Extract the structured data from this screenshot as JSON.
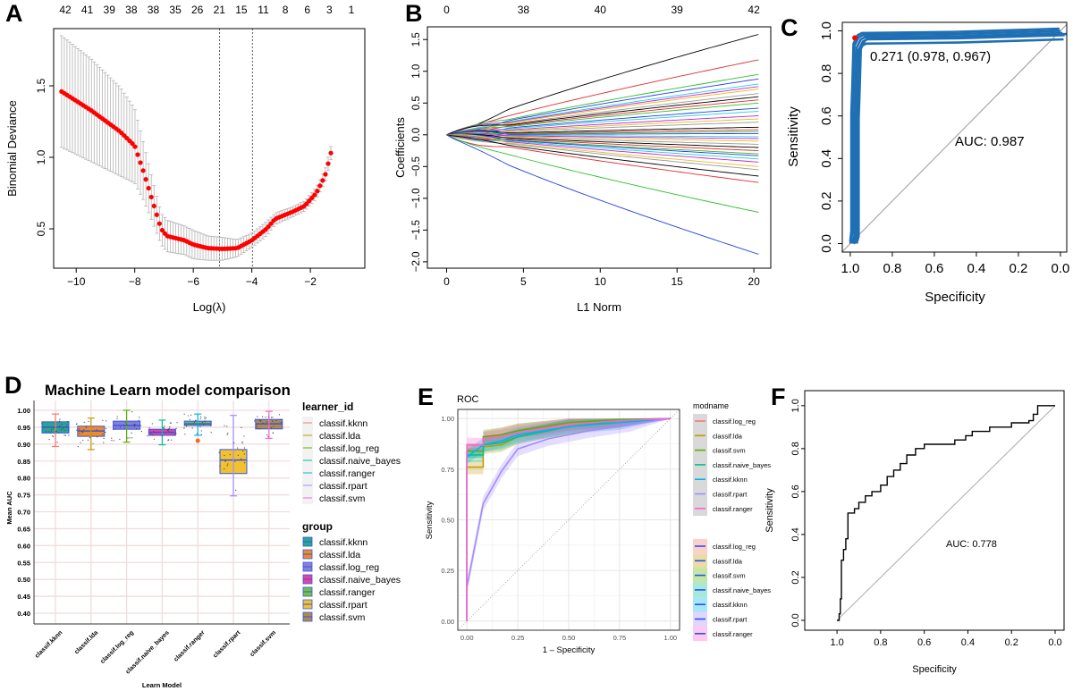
{
  "panel_labels": [
    "A",
    "B",
    "C",
    "D",
    "E",
    "F"
  ],
  "chart_data": [
    {
      "panel": "A",
      "type": "scatter",
      "xlabel": "Log(λ)",
      "ylabel": "Binomial Deviance",
      "xlim": [
        -10.77,
        -0.14
      ],
      "ylim": [
        0.225,
        1.9
      ],
      "x_ticks": [
        -10,
        -8,
        -6,
        -4,
        -2
      ],
      "y_ticks": [
        0.5,
        1.0,
        1.5
      ],
      "top_axis_labels": [
        "42",
        "41",
        "39",
        "38",
        "38",
        "35",
        "26",
        "21",
        "15",
        "11",
        "8",
        "6",
        "3",
        "1"
      ],
      "vlines": [
        -5.1,
        -3.98
      ],
      "point_color": "#ff0000",
      "errorbar_color": "#b3b3b3",
      "curve": [
        [
          -10.5,
          1.46,
          0.39
        ],
        [
          -9.5,
          1.33,
          0.36
        ],
        [
          -8.5,
          1.18,
          0.31
        ],
        [
          -8,
          1.08,
          0.26
        ],
        [
          -7.7,
          0.9,
          0.2
        ],
        [
          -7.4,
          0.7,
          0.15
        ],
        [
          -7.1,
          0.5,
          0.11
        ],
        [
          -6.9,
          0.45,
          0.11
        ],
        [
          -6.3,
          0.42,
          0.1
        ],
        [
          -6,
          0.39,
          0.1
        ],
        [
          -5.5,
          0.365,
          0.085
        ],
        [
          -5,
          0.36,
          0.08
        ],
        [
          -4.5,
          0.365,
          0.06
        ],
        [
          -4,
          0.42,
          0.05
        ],
        [
          -3.5,
          0.5,
          0.05
        ],
        [
          -3.2,
          0.57,
          0.04
        ],
        [
          -2.6,
          0.62,
          0.035
        ],
        [
          -2.2,
          0.66,
          0.035
        ],
        [
          -1.8,
          0.75,
          0.04
        ],
        [
          -1.5,
          0.87,
          0.045
        ],
        [
          -1.3,
          1.03,
          0.045
        ]
      ]
    },
    {
      "panel": "B",
      "type": "line",
      "xlabel": "L1 Norm",
      "ylabel": "Coefficients",
      "xlim": [
        -1.25,
        21.1
      ],
      "ylim": [
        -2.1,
        1.7
      ],
      "x_ticks": [
        0,
        5,
        10,
        15,
        20
      ],
      "y_ticks": [
        -2.0,
        -1.5,
        -1.0,
        -0.5,
        0.0,
        0.5,
        1.0,
        1.5
      ],
      "top_axis_labels": [
        "0",
        "38",
        "40",
        "39",
        "42"
      ],
      "x_max": 20.3,
      "end_values": [
        1.58,
        1.18,
        0.95,
        0.88,
        0.8,
        0.76,
        0.72,
        0.65,
        0.6,
        0.55,
        0.5,
        0.42,
        0.37,
        0.3,
        0.25,
        0.2,
        0.12,
        0.08,
        0.05,
        0.02,
        -0.03,
        -0.06,
        -0.1,
        -0.15,
        -0.2,
        -0.25,
        -0.3,
        -0.33,
        -0.38,
        -0.43,
        -0.5,
        -0.55,
        -0.65,
        -0.75,
        -1.22,
        -1.88
      ],
      "palette": [
        "#000000",
        "#df2f2f",
        "#2fbf2f",
        "#2040e0",
        "#20d0e0",
        "#d020d0",
        "#e0c020",
        "#999999"
      ]
    },
    {
      "panel": "C",
      "type": "line",
      "xlabel": "Specificity",
      "ylabel": "Sensitivity",
      "xlim": [
        1.038,
        -0.03
      ],
      "ylim": [
        -0.04,
        1.04
      ],
      "x_ticks": [
        "1.0",
        "0.8",
        "0.6",
        "0.4",
        "0.2",
        "0.0"
      ],
      "y_ticks": [
        "0.0",
        "0.2",
        "0.4",
        "0.6",
        "0.8",
        "1.0"
      ],
      "line_color": "#1f6fb4",
      "roc": [
        [
          1,
          0
        ],
        [
          0.99,
          0.05
        ],
        [
          0.99,
          0.6
        ],
        [
          0.985,
          0.75
        ],
        [
          0.98,
          0.93
        ],
        [
          0.96,
          0.97
        ],
        [
          0.94,
          0.98
        ],
        [
          0.5,
          0.985
        ],
        [
          0,
          1
        ]
      ],
      "best_point": [
        0.978,
        0.967
      ],
      "best_label": "0.271 (0.978, 0.967)",
      "auc_label": "AUC: 0.987"
    },
    {
      "panel": "D",
      "type": "box",
      "title": "Machine Learn model comparison",
      "xlabel": "Learn Model",
      "ylabel": "Mean AUC",
      "ylim": [
        0.37,
        1.02
      ],
      "y_ticks": [
        "0.40",
        "0.45",
        "0.50",
        "0.55",
        "0.60",
        "0.65",
        "0.70",
        "0.75",
        "0.80",
        "0.85",
        "0.90",
        "0.95",
        "1.00"
      ],
      "categories": [
        "classif.kknn",
        "classif.lda",
        "classif.log_reg",
        "classif.naive_bayes",
        "classif.ranger",
        "classif.rpart",
        "classif.svm"
      ],
      "box_stats": [
        [
          0.893,
          0.933,
          0.95,
          0.966,
          0.989
        ],
        [
          0.884,
          0.923,
          0.939,
          0.953,
          0.977
        ],
        [
          0.906,
          0.944,
          0.955,
          0.968,
          1.0
        ],
        [
          0.898,
          0.926,
          0.935,
          0.944,
          0.971
        ],
        [
          0.926,
          0.955,
          0.96,
          0.968,
          0.989
        ],
        [
          0.747,
          0.813,
          0.853,
          0.884,
          0.985
        ],
        [
          0.917,
          0.945,
          0.96,
          0.973,
          0.997
        ]
      ],
      "outliers": [
        {
          "category": "classif.ranger",
          "value": 0.91
        }
      ],
      "legend_learner_title": "learner_id",
      "legend_learner": [
        "classif.kknn",
        "classif.lda",
        "classif.log_reg",
        "classif.naive_bayes",
        "classif.ranger",
        "classif.rpart",
        "classif.svm"
      ],
      "learner_colors": [
        "#f8766d",
        "#c49a00",
        "#53b400",
        "#00c094",
        "#00b6eb",
        "#a58aff",
        "#fb61d7"
      ],
      "legend_group_title": "group",
      "legend_group": [
        "classif.kknn",
        "classif.lda",
        "classif.log_reg",
        "classif.naive_bayes",
        "classif.ranger",
        "classif.rpart",
        "classif.svm"
      ],
      "group_colors": [
        "#2ca58d",
        "#f08a24",
        "#8a7fd6",
        "#e8439b",
        "#78c143",
        "#f2c12e",
        "#b08a4a"
      ],
      "box_border_color": "#3355ee"
    },
    {
      "panel": "E",
      "type": "line",
      "title": "ROC",
      "xlabel": "1 – Specificity",
      "ylabel": "Sensitivity",
      "xlim": [
        -0.045,
        1.045
      ],
      "ylim": [
        -0.045,
        1.045
      ],
      "x_ticks": [
        "0.00",
        "0.25",
        "0.50",
        "0.75",
        "1.00"
      ],
      "y_ticks": [
        "0.00",
        "0.25",
        "0.50",
        "0.75",
        "1.00"
      ],
      "legend_title": "modname",
      "series": [
        {
          "name": "classif.log_reg",
          "color": "#f8766d",
          "points": [
            [
              0,
              0
            ],
            [
              0,
              0.84
            ],
            [
              0.08,
              0.84
            ],
            [
              0.08,
              0.9
            ],
            [
              0.17,
              0.92
            ],
            [
              0.25,
              0.94
            ],
            [
              0.5,
              0.975
            ],
            [
              0.75,
              0.993
            ],
            [
              1,
              1
            ]
          ]
        },
        {
          "name": "classif.lda",
          "color": "#c49a00",
          "points": [
            [
              0,
              0
            ],
            [
              0,
              0.76
            ],
            [
              0.08,
              0.76
            ],
            [
              0.08,
              0.86
            ],
            [
              0.17,
              0.87
            ],
            [
              0.25,
              0.91
            ],
            [
              0.5,
              0.96
            ],
            [
              0.75,
              0.99
            ],
            [
              1,
              1
            ]
          ]
        },
        {
          "name": "classif.svm",
          "color": "#53b400",
          "points": [
            [
              0,
              0
            ],
            [
              0,
              0.84
            ],
            [
              0.08,
              0.84
            ],
            [
              0.08,
              0.91
            ],
            [
              0.17,
              0.92
            ],
            [
              0.25,
              0.94
            ],
            [
              0.5,
              0.98
            ],
            [
              0.75,
              0.995
            ],
            [
              1,
              1
            ]
          ]
        },
        {
          "name": "classif.naive_bayes",
          "color": "#00c094",
          "points": [
            [
              0,
              0
            ],
            [
              0,
              0.82
            ],
            [
              0.08,
              0.82
            ],
            [
              0.08,
              0.87
            ],
            [
              0.17,
              0.88
            ],
            [
              0.25,
              0.91
            ],
            [
              0.5,
              0.96
            ],
            [
              0.75,
              0.99
            ],
            [
              1,
              1
            ]
          ]
        },
        {
          "name": "classif.kknn",
          "color": "#00b6eb",
          "points": [
            [
              0,
              0
            ],
            [
              0,
              0.81
            ],
            [
              0.08,
              0.87
            ],
            [
              0.17,
              0.89
            ],
            [
              0.25,
              0.92
            ],
            [
              0.5,
              0.96
            ],
            [
              0.75,
              0.98
            ],
            [
              1,
              1
            ]
          ]
        },
        {
          "name": "classif.rpart",
          "color": "#a58aff",
          "points": [
            [
              0,
              0
            ],
            [
              0,
              0.17
            ],
            [
              0.08,
              0.58
            ],
            [
              0.17,
              0.74
            ],
            [
              0.25,
              0.85
            ],
            [
              0.4,
              0.9
            ],
            [
              0.6,
              0.94
            ],
            [
              0.8,
              0.97
            ],
            [
              1,
              1
            ]
          ]
        },
        {
          "name": "classif.ranger",
          "color": "#fb61d7",
          "points": [
            [
              0,
              0
            ],
            [
              0,
              0.87
            ],
            [
              0.08,
              0.87
            ],
            [
              0.08,
              0.9
            ],
            [
              0.17,
              0.91
            ],
            [
              0.25,
              0.93
            ],
            [
              0.5,
              0.97
            ],
            [
              0.75,
              0.99
            ],
            [
              1,
              1
            ]
          ]
        }
      ],
      "ribbon_legend": [
        "classif.log_reg",
        "classif.lda",
        "classif.svm",
        "classif.naive_bayes",
        "classif.kknn",
        "classif.rpart",
        "classif.ranger"
      ],
      "ribbon_line_color": "#2255ee"
    },
    {
      "panel": "F",
      "type": "line",
      "xlabel": "Specificity",
      "ylabel": "Sensitivity",
      "xlim": [
        1.148,
        -0.041
      ],
      "ylim": [
        -0.046,
        1.07
      ],
      "x_ticks": [
        "1.0",
        "0.8",
        "0.6",
        "0.4",
        "0.2",
        "0.0"
      ],
      "y_ticks": [
        "0.0",
        "0.2",
        "0.4",
        "0.6",
        "0.8",
        "1.0"
      ],
      "line_color": "#000000",
      "roc": [
        [
          1,
          0
        ],
        [
          0.99,
          0
        ],
        [
          0.99,
          0.03
        ],
        [
          0.985,
          0.03
        ],
        [
          0.985,
          0.1
        ],
        [
          0.98,
          0.1
        ],
        [
          0.98,
          0.28
        ],
        [
          0.97,
          0.28
        ],
        [
          0.97,
          0.33
        ],
        [
          0.96,
          0.33
        ],
        [
          0.96,
          0.38
        ],
        [
          0.95,
          0.38
        ],
        [
          0.95,
          0.5
        ],
        [
          0.92,
          0.5
        ],
        [
          0.92,
          0.52
        ],
        [
          0.9,
          0.52
        ],
        [
          0.9,
          0.55
        ],
        [
          0.87,
          0.55
        ],
        [
          0.87,
          0.58
        ],
        [
          0.84,
          0.58
        ],
        [
          0.84,
          0.6
        ],
        [
          0.8,
          0.6
        ],
        [
          0.8,
          0.63
        ],
        [
          0.77,
          0.63
        ],
        [
          0.77,
          0.67
        ],
        [
          0.74,
          0.67
        ],
        [
          0.74,
          0.7
        ],
        [
          0.71,
          0.7
        ],
        [
          0.71,
          0.73
        ],
        [
          0.68,
          0.73
        ],
        [
          0.68,
          0.77
        ],
        [
          0.64,
          0.77
        ],
        [
          0.64,
          0.8
        ],
        [
          0.6,
          0.8
        ],
        [
          0.6,
          0.82
        ],
        [
          0.46,
          0.82
        ],
        [
          0.46,
          0.84
        ],
        [
          0.41,
          0.84
        ],
        [
          0.41,
          0.86
        ],
        [
          0.38,
          0.86
        ],
        [
          0.38,
          0.88
        ],
        [
          0.3,
          0.88
        ],
        [
          0.3,
          0.9
        ],
        [
          0.2,
          0.9
        ],
        [
          0.2,
          0.92
        ],
        [
          0.12,
          0.92
        ],
        [
          0.12,
          0.93
        ],
        [
          0.1,
          0.93
        ],
        [
          0.1,
          0.96
        ],
        [
          0.08,
          0.96
        ],
        [
          0.08,
          1.0
        ],
        [
          0,
          1.0
        ]
      ],
      "auc_label": "AUC: 0.778"
    }
  ]
}
